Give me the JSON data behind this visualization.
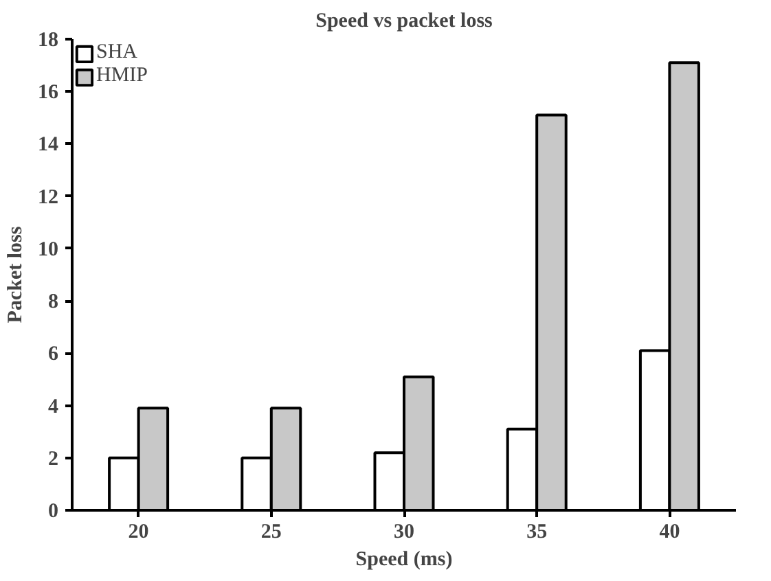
{
  "chart_data": {
    "type": "bar",
    "title": "Speed vs packet loss",
    "xlabel": "Speed (ms)",
    "ylabel": "Packet loss",
    "categories": [
      "20",
      "25",
      "30",
      "35",
      "40"
    ],
    "series": [
      {
        "name": "SHA",
        "color": "#ffffff",
        "values": [
          2.0,
          2.0,
          2.2,
          3.1,
          6.1
        ]
      },
      {
        "name": "HMIP",
        "color": "#c8c8c8",
        "values": [
          3.9,
          3.9,
          5.1,
          15.1,
          17.1
        ]
      }
    ],
    "ylim": [
      0,
      18
    ],
    "yticks": [
      0,
      2,
      4,
      6,
      8,
      10,
      12,
      14,
      16,
      18
    ],
    "grid": false,
    "legend": "top left"
  }
}
